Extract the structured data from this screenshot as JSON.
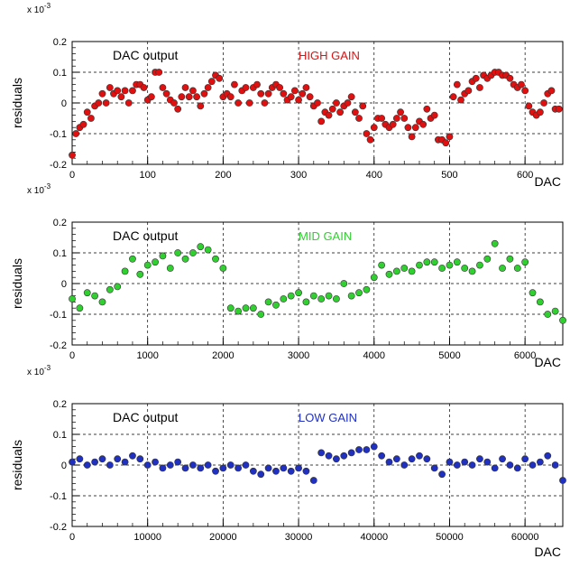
{
  "chart_data": [
    {
      "type": "scatter",
      "exponent_label": "x 10",
      "exponent_power": "-3",
      "ylabel": "residuals",
      "xlabel": "DAC",
      "label_left": "DAC output",
      "label_right": "HIGH GAIN",
      "color": "#e01010",
      "xlim": [
        0,
        650
      ],
      "ylim": [
        -0.2,
        0.2
      ],
      "xticks": [
        "0",
        "100",
        "200",
        "300",
        "400",
        "500",
        "600"
      ],
      "yticks": [
        "0.2",
        "0.1",
        "0",
        "-0.1",
        "-0.2"
      ],
      "x": [
        0,
        5,
        10,
        15,
        20,
        25,
        30,
        35,
        40,
        45,
        50,
        55,
        60,
        65,
        70,
        75,
        80,
        85,
        90,
        95,
        100,
        105,
        110,
        115,
        120,
        125,
        130,
        135,
        140,
        145,
        150,
        155,
        160,
        165,
        170,
        175,
        180,
        185,
        190,
        195,
        200,
        205,
        210,
        215,
        220,
        225,
        230,
        235,
        240,
        245,
        250,
        255,
        260,
        265,
        270,
        275,
        280,
        285,
        290,
        295,
        300,
        305,
        310,
        315,
        320,
        325,
        330,
        335,
        340,
        345,
        350,
        355,
        360,
        365,
        370,
        375,
        380,
        385,
        390,
        395,
        400,
        405,
        410,
        415,
        420,
        425,
        430,
        435,
        440,
        445,
        450,
        455,
        460,
        465,
        470,
        475,
        480,
        485,
        490,
        495,
        500,
        505,
        510,
        515,
        520,
        525,
        530,
        535,
        540,
        545,
        550,
        555,
        560,
        565,
        570,
        575,
        580,
        585,
        590,
        595,
        600,
        605,
        610,
        615,
        620,
        625,
        630,
        635,
        640,
        645
      ],
      "y": [
        -0.17,
        -0.1,
        -0.08,
        -0.07,
        -0.03,
        -0.05,
        -0.01,
        0.0,
        0.03,
        0.0,
        0.05,
        0.03,
        0.04,
        0.02,
        0.04,
        0.0,
        0.04,
        0.06,
        0.06,
        0.05,
        0.01,
        0.02,
        0.1,
        0.1,
        0.05,
        0.03,
        0.01,
        0.0,
        -0.02,
        0.02,
        0.05,
        0.02,
        0.04,
        0.02,
        -0.01,
        0.03,
        0.05,
        0.07,
        0.09,
        0.08,
        0.02,
        0.03,
        0.02,
        0.06,
        0.0,
        0.04,
        0.05,
        0.0,
        0.05,
        0.06,
        0.03,
        0.0,
        0.03,
        0.05,
        0.06,
        0.05,
        0.03,
        0.01,
        0.02,
        0.04,
        0.01,
        0.03,
        0.05,
        0.02,
        -0.01,
        0.0,
        -0.06,
        -0.03,
        -0.04,
        -0.02,
        0.0,
        -0.03,
        -0.01,
        0.0,
        0.02,
        -0.03,
        -0.05,
        -0.01,
        -0.1,
        -0.12,
        -0.08,
        -0.05,
        -0.05,
        -0.07,
        -0.08,
        -0.07,
        -0.05,
        -0.03,
        -0.05,
        -0.08,
        -0.11,
        -0.08,
        -0.06,
        -0.07,
        -0.02,
        -0.05,
        -0.04,
        -0.12,
        -0.12,
        -0.13,
        -0.11,
        0.02,
        0.06,
        0.01,
        0.03,
        0.04,
        0.07,
        0.08,
        0.05,
        0.09,
        0.08,
        0.09,
        0.1,
        0.1,
        0.09,
        0.09,
        0.08,
        0.06,
        0.05,
        0.06,
        0.04,
        -0.01,
        -0.03,
        -0.04,
        -0.03,
        0.0,
        0.03,
        0.04,
        -0.02,
        -0.02
      ]
    },
    {
      "type": "scatter",
      "exponent_label": "x 10",
      "exponent_power": "-3",
      "ylabel": "residuals",
      "xlabel": "DAC",
      "label_left": "DAC output",
      "label_right": "MID GAIN",
      "color": "#30d030",
      "xlim": [
        0,
        6500
      ],
      "ylim": [
        -0.2,
        0.2
      ],
      "xticks": [
        "0",
        "1000",
        "2000",
        "3000",
        "4000",
        "5000",
        "6000"
      ],
      "yticks": [
        "0.2",
        "0.1",
        "0",
        "-0.1",
        "-0.2"
      ],
      "x": [
        0,
        100,
        200,
        300,
        400,
        500,
        600,
        700,
        800,
        900,
        1000,
        1100,
        1200,
        1300,
        1400,
        1500,
        1600,
        1700,
        1800,
        1900,
        2000,
        2100,
        2200,
        2300,
        2400,
        2500,
        2600,
        2700,
        2800,
        2900,
        3000,
        3100,
        3200,
        3300,
        3400,
        3500,
        3600,
        3700,
        3800,
        3900,
        4000,
        4100,
        4200,
        4300,
        4400,
        4500,
        4600,
        4700,
        4800,
        4900,
        5000,
        5100,
        5200,
        5300,
        5400,
        5500,
        5600,
        5700,
        5800,
        5900,
        6000,
        6100,
        6200,
        6300,
        6400,
        6500
      ],
      "y": [
        -0.05,
        -0.08,
        -0.03,
        -0.04,
        -0.06,
        -0.02,
        -0.01,
        0.04,
        0.08,
        0.03,
        0.06,
        0.07,
        0.09,
        0.05,
        0.1,
        0.08,
        0.1,
        0.12,
        0.11,
        0.08,
        0.05,
        -0.08,
        -0.09,
        -0.08,
        -0.08,
        -0.1,
        -0.06,
        -0.07,
        -0.05,
        -0.04,
        -0.03,
        -0.06,
        -0.04,
        -0.05,
        -0.04,
        -0.05,
        0.0,
        -0.04,
        -0.03,
        -0.02,
        0.02,
        0.06,
        0.03,
        0.04,
        0.05,
        0.04,
        0.06,
        0.07,
        0.07,
        0.05,
        0.06,
        0.07,
        0.05,
        0.04,
        0.06,
        0.08,
        0.13,
        0.05,
        0.08,
        0.05,
        0.07,
        -0.03,
        -0.06,
        -0.1,
        -0.09,
        -0.12
      ]
    },
    {
      "type": "scatter",
      "exponent_label": "x 10",
      "exponent_power": "-3",
      "ylabel": "residuals",
      "xlabel": "DAC",
      "label_left": "DAC output",
      "label_right": "LOW GAIN",
      "color": "#2030c0",
      "xlim": [
        0,
        65000
      ],
      "ylim": [
        -0.2,
        0.2
      ],
      "xticks": [
        "0",
        "10000",
        "20000",
        "30000",
        "40000",
        "50000",
        "60000"
      ],
      "yticks": [
        "0.2",
        "0.1",
        "0",
        "-0.1",
        "-0.2"
      ],
      "x": [
        0,
        1000,
        2000,
        3000,
        4000,
        5000,
        6000,
        7000,
        8000,
        9000,
        10000,
        11000,
        12000,
        13000,
        14000,
        15000,
        16000,
        17000,
        18000,
        19000,
        20000,
        21000,
        22000,
        23000,
        24000,
        25000,
        26000,
        27000,
        28000,
        29000,
        30000,
        31000,
        32000,
        33000,
        34000,
        35000,
        36000,
        37000,
        38000,
        39000,
        40000,
        41000,
        42000,
        43000,
        44000,
        45000,
        46000,
        47000,
        48000,
        49000,
        50000,
        51000,
        52000,
        53000,
        54000,
        55000,
        56000,
        57000,
        58000,
        59000,
        60000,
        61000,
        62000,
        63000,
        64000,
        65000
      ],
      "y": [
        0.01,
        0.02,
        0.0,
        0.01,
        0.02,
        0.0,
        0.02,
        0.01,
        0.03,
        0.02,
        0.0,
        0.01,
        -0.01,
        0.0,
        0.01,
        -0.01,
        0.0,
        -0.01,
        0.0,
        -0.02,
        -0.01,
        0.0,
        -0.01,
        0.0,
        -0.02,
        -0.03,
        -0.01,
        -0.02,
        -0.01,
        -0.02,
        -0.01,
        -0.02,
        -0.05,
        0.04,
        0.03,
        0.02,
        0.03,
        0.04,
        0.05,
        0.05,
        0.06,
        0.03,
        0.01,
        0.02,
        0.0,
        0.02,
        0.03,
        0.02,
        -0.01,
        -0.03,
        0.01,
        0.0,
        0.01,
        0.0,
        0.02,
        0.01,
        -0.01,
        0.02,
        0.0,
        -0.01,
        0.02,
        0.0,
        0.01,
        0.03,
        0.0,
        -0.05
      ]
    }
  ]
}
